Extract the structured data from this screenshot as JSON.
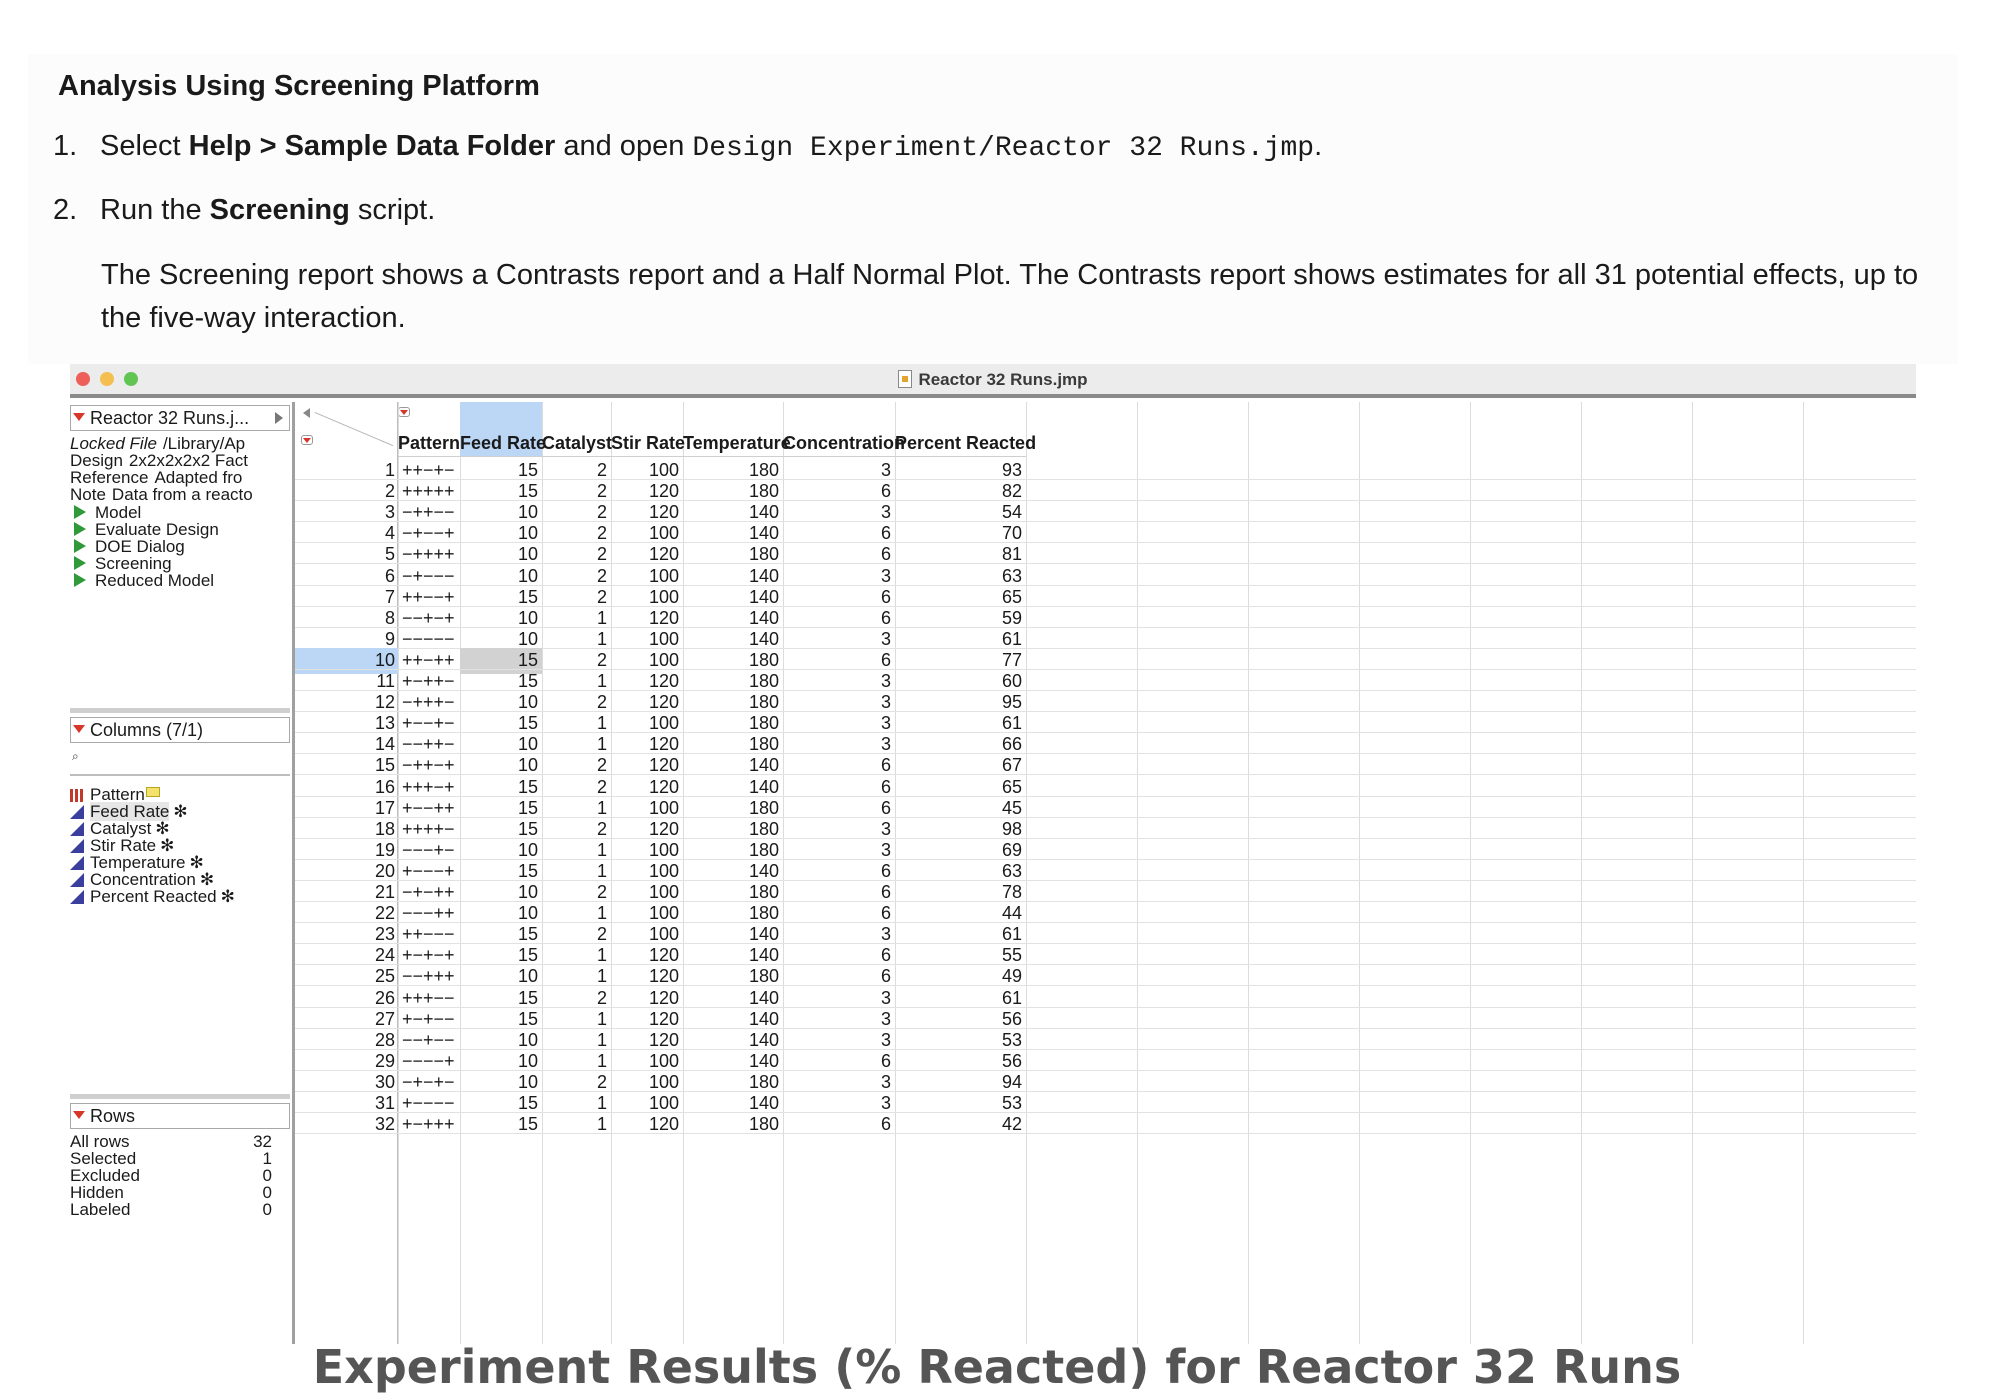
{
  "doc": {
    "heading": "Analysis Using Screening Platform",
    "step1": {
      "num": "1.",
      "pre": "Select ",
      "bold": "Help > Sample Data Folder",
      "mid": " and open ",
      "code": "Design Experiment/Reactor 32 Runs.jmp",
      "post": "."
    },
    "step2": {
      "num": "2.",
      "pre": "Run the ",
      "bold": "Screening",
      "post": " script."
    },
    "paragraph": "The Screening report shows a Contrasts report and a Half Normal Plot. The Contrasts report shows estimates for all 31 potential effects, up to the five-way interaction."
  },
  "window": {
    "title": "Reactor 32 Runs.jmp",
    "left_panel": {
      "table_header": "Reactor 32 Runs.j...",
      "table_props": [
        {
          "key": "Locked File",
          "value": "/Library/Ap",
          "italic": true
        },
        {
          "key": "Design",
          "value": "2x2x2x2x2 Fact",
          "italic": false
        },
        {
          "key": "Reference",
          "value": "Adapted fro",
          "italic": false
        },
        {
          "key": "Note",
          "value": "Data from a reacto",
          "italic": false
        }
      ],
      "scripts": [
        "Model",
        "Evaluate Design",
        "DOE Dialog",
        "Screening",
        "Reduced Model"
      ],
      "columns_header": "Columns (7/1)",
      "search_icon": "magnifier-icon",
      "columns": [
        {
          "name": "Pattern",
          "type": "nominal",
          "star": ""
        },
        {
          "name": "Feed Rate",
          "type": "continuous",
          "star": "✻"
        },
        {
          "name": "Catalyst",
          "type": "continuous",
          "star": "✻"
        },
        {
          "name": "Stir Rate",
          "type": "continuous",
          "star": "✻"
        },
        {
          "name": "Temperature",
          "type": "continuous",
          "star": "✻"
        },
        {
          "name": "Concentration",
          "type": "continuous",
          "star": "✻"
        },
        {
          "name": "Percent Reacted",
          "type": "continuous",
          "star": "✻"
        }
      ],
      "rows_header": "Rows",
      "row_stats": [
        {
          "label": "All rows",
          "value": "32"
        },
        {
          "label": "Selected",
          "value": "1"
        },
        {
          "label": "Excluded",
          "value": "0"
        },
        {
          "label": "Hidden",
          "value": "0"
        },
        {
          "label": "Labeled",
          "value": "0"
        }
      ]
    },
    "table": {
      "headers": [
        "Pattern",
        "Feed Rate",
        "Catalyst",
        "Stir Rate",
        "Temperature",
        "Concentration",
        "Percent Reacted"
      ],
      "selected_column": "Feed Rate",
      "selected_row": 10,
      "rows": [
        [
          "1",
          "++−+−",
          "15",
          "2",
          "100",
          "180",
          "3",
          "93"
        ],
        [
          "2",
          "+++++",
          "15",
          "2",
          "120",
          "180",
          "6",
          "82"
        ],
        [
          "3",
          "−++−−",
          "10",
          "2",
          "120",
          "140",
          "3",
          "54"
        ],
        [
          "4",
          "−+−−+",
          "10",
          "2",
          "100",
          "140",
          "6",
          "70"
        ],
        [
          "5",
          "−++++",
          "10",
          "2",
          "120",
          "180",
          "6",
          "81"
        ],
        [
          "6",
          "−+−−−",
          "10",
          "2",
          "100",
          "140",
          "3",
          "63"
        ],
        [
          "7",
          "++−−+",
          "15",
          "2",
          "100",
          "140",
          "6",
          "65"
        ],
        [
          "8",
          "−−+−+",
          "10",
          "1",
          "120",
          "140",
          "6",
          "59"
        ],
        [
          "9",
          "−−−−−",
          "10",
          "1",
          "100",
          "140",
          "3",
          "61"
        ],
        [
          "10",
          "++−++",
          "15",
          "2",
          "100",
          "180",
          "6",
          "77"
        ],
        [
          "11",
          "+−++−",
          "15",
          "1",
          "120",
          "180",
          "3",
          "60"
        ],
        [
          "12",
          "−+++−",
          "10",
          "2",
          "120",
          "180",
          "3",
          "95"
        ],
        [
          "13",
          "+−−+−",
          "15",
          "1",
          "100",
          "180",
          "3",
          "61"
        ],
        [
          "14",
          "−−++−",
          "10",
          "1",
          "120",
          "180",
          "3",
          "66"
        ],
        [
          "15",
          "−++−+",
          "10",
          "2",
          "120",
          "140",
          "6",
          "67"
        ],
        [
          "16",
          "+++−+",
          "15",
          "2",
          "120",
          "140",
          "6",
          "65"
        ],
        [
          "17",
          "+−−++",
          "15",
          "1",
          "100",
          "180",
          "6",
          "45"
        ],
        [
          "18",
          "++++−",
          "15",
          "2",
          "120",
          "180",
          "3",
          "98"
        ],
        [
          "19",
          "−−−+−",
          "10",
          "1",
          "100",
          "180",
          "3",
          "69"
        ],
        [
          "20",
          "+−−−+",
          "15",
          "1",
          "100",
          "140",
          "6",
          "63"
        ],
        [
          "21",
          "−+−++",
          "10",
          "2",
          "100",
          "180",
          "6",
          "78"
        ],
        [
          "22",
          "−−−++",
          "10",
          "1",
          "100",
          "180",
          "6",
          "44"
        ],
        [
          "23",
          "++−−−",
          "15",
          "2",
          "100",
          "140",
          "3",
          "61"
        ],
        [
          "24",
          "+−+−+",
          "15",
          "1",
          "120",
          "140",
          "6",
          "55"
        ],
        [
          "25",
          "−−+++",
          "10",
          "1",
          "120",
          "180",
          "6",
          "49"
        ],
        [
          "26",
          "+++−−",
          "15",
          "2",
          "120",
          "140",
          "3",
          "61"
        ],
        [
          "27",
          "+−+−−",
          "15",
          "1",
          "120",
          "140",
          "3",
          "56"
        ],
        [
          "28",
          "−−+−−",
          "10",
          "1",
          "120",
          "140",
          "3",
          "53"
        ],
        [
          "29",
          "−−−−+",
          "10",
          "1",
          "100",
          "140",
          "6",
          "56"
        ],
        [
          "30",
          "−+−+−",
          "10",
          "2",
          "100",
          "180",
          "3",
          "94"
        ],
        [
          "31",
          "+−−−−",
          "15",
          "1",
          "100",
          "140",
          "3",
          "53"
        ],
        [
          "32",
          "+−+++",
          "15",
          "1",
          "120",
          "180",
          "6",
          "42"
        ]
      ]
    }
  },
  "caption": "Experiment Results (% Reacted) for Reactor 32 Runs",
  "colors": {
    "selection": "#bcd7f5",
    "script_triangle": "#2f9a3a",
    "disclosure": "#d9362a",
    "continuous_icon": "#3a3f9e"
  }
}
